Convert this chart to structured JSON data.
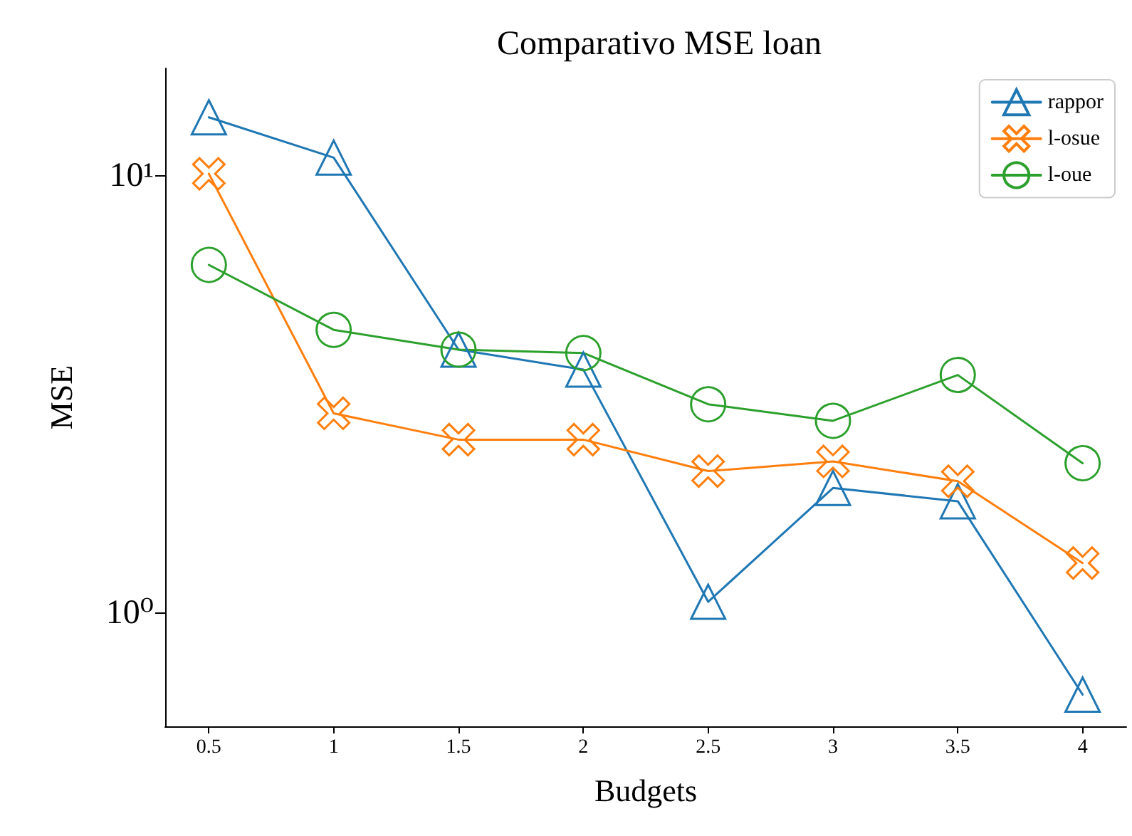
{
  "chart_data": {
    "type": "line",
    "title": "Comparativo MSE loan",
    "xlabel": "Budgets",
    "ylabel": "MSE",
    "x": [
      0.5,
      1.0,
      1.5,
      2.0,
      2.5,
      3.0,
      3.5,
      4.0
    ],
    "series": [
      {
        "name": "rappor",
        "color": "#1f77b4",
        "marker": "triangle",
        "values": [
          13.6,
          11.0,
          4.0,
          3.6,
          1.06,
          1.93,
          1.8,
          0.65
        ]
      },
      {
        "name": "l-osue",
        "color": "#ff7f0e",
        "marker": "cross",
        "values": [
          10.1,
          2.86,
          2.49,
          2.49,
          2.11,
          2.22,
          2.0,
          1.3
        ]
      },
      {
        "name": "l-oue",
        "color": "#2ca02c",
        "marker": "circle",
        "values": [
          6.25,
          4.44,
          4.0,
          3.93,
          3.0,
          2.75,
          3.5,
          2.2
        ]
      }
    ],
    "xlim": [
      0.325,
      4.175
    ],
    "xticks": [
      0.5,
      1.0,
      1.5,
      2.0,
      2.5,
      3.0,
      3.5,
      4.0
    ],
    "ylim": [
      0.55,
      17.6
    ],
    "yticks": [
      {
        "value": 1,
        "label": "10⁰"
      },
      {
        "value": 10,
        "label": "10¹"
      }
    ],
    "log": "y",
    "grid": false,
    "legend": "top right",
    "line_style": "solid"
  }
}
